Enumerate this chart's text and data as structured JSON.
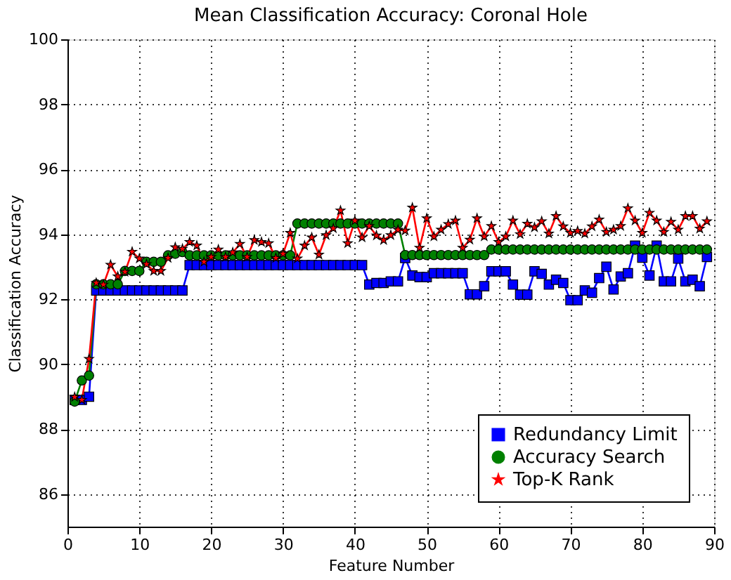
{
  "chart_data": {
    "type": "line",
    "title": "Mean Classification Accuracy: Coronal Hole",
    "xlabel": "Feature Number",
    "ylabel": "Classification Accuracy",
    "x": [
      1,
      2,
      3,
      4,
      5,
      6,
      7,
      8,
      9,
      10,
      11,
      12,
      13,
      14,
      15,
      16,
      17,
      18,
      19,
      20,
      21,
      22,
      23,
      24,
      25,
      26,
      27,
      28,
      29,
      30,
      31,
      32,
      33,
      34,
      35,
      36,
      37,
      38,
      39,
      40,
      41,
      42,
      43,
      44,
      45,
      46,
      47,
      48,
      49,
      50,
      51,
      52,
      53,
      54,
      55,
      56,
      57,
      58,
      59,
      60,
      61,
      62,
      63,
      64,
      65,
      66,
      67,
      68,
      69,
      70,
      71,
      72,
      73,
      74,
      75,
      76,
      77,
      78,
      79,
      80,
      81,
      82,
      83,
      84,
      85,
      86,
      87,
      88,
      89
    ],
    "series": [
      {
        "name": "Redundancy Limit",
        "color": "#0000ff",
        "marker": "square",
        "values": [
          88.9,
          88.9,
          89.0,
          92.27,
          92.27,
          92.27,
          92.27,
          92.27,
          92.27,
          92.27,
          92.27,
          92.27,
          92.27,
          92.27,
          92.27,
          92.27,
          93.05,
          93.05,
          93.05,
          93.05,
          93.05,
          93.05,
          93.05,
          93.05,
          93.05,
          93.05,
          93.05,
          93.05,
          93.05,
          93.05,
          93.05,
          93.05,
          93.05,
          93.05,
          93.05,
          93.05,
          93.05,
          93.05,
          93.05,
          93.05,
          93.05,
          92.45,
          92.5,
          92.5,
          92.55,
          92.55,
          93.27,
          92.73,
          92.68,
          92.68,
          92.8,
          92.8,
          92.8,
          92.8,
          92.8,
          92.15,
          92.15,
          92.4,
          92.86,
          92.86,
          92.86,
          92.45,
          92.14,
          92.14,
          92.86,
          92.78,
          92.45,
          92.6,
          92.5,
          91.97,
          91.97,
          92.27,
          92.2,
          92.65,
          93.0,
          92.3,
          92.7,
          92.8,
          93.65,
          93.28,
          92.73,
          93.65,
          92.55,
          92.55,
          93.25,
          92.55,
          92.6,
          92.4,
          93.3
        ]
      },
      {
        "name": "Accuracy Search",
        "color": "#008000",
        "marker": "circle",
        "values": [
          88.85,
          89.5,
          89.65,
          92.46,
          92.46,
          92.46,
          92.46,
          92.87,
          92.87,
          92.87,
          93.15,
          93.15,
          93.15,
          93.35,
          93.4,
          93.45,
          93.35,
          93.35,
          93.35,
          93.35,
          93.35,
          93.35,
          93.35,
          93.35,
          93.35,
          93.35,
          93.35,
          93.35,
          93.35,
          93.35,
          93.35,
          94.33,
          94.33,
          94.33,
          94.33,
          94.33,
          94.33,
          94.33,
          94.33,
          94.33,
          94.33,
          94.33,
          94.33,
          94.33,
          94.33,
          94.33,
          93.36,
          93.36,
          93.36,
          93.36,
          93.36,
          93.36,
          93.36,
          93.36,
          93.36,
          93.36,
          93.36,
          93.36,
          93.53,
          93.53,
          93.53,
          93.53,
          93.53,
          93.53,
          93.53,
          93.53,
          93.53,
          93.53,
          93.53,
          93.53,
          93.53,
          93.53,
          93.53,
          93.53,
          93.53,
          93.53,
          93.53,
          93.53,
          93.53,
          93.53,
          93.53,
          93.53,
          93.53,
          93.53,
          93.53,
          93.53,
          93.53,
          93.53,
          93.53
        ]
      },
      {
        "name": "Top-K Rank",
        "color": "#ff0000",
        "marker": "star",
        "values": [
          88.99,
          88.9,
          90.16,
          92.5,
          92.45,
          93.06,
          92.7,
          92.84,
          93.46,
          93.25,
          93.08,
          92.87,
          92.87,
          93.27,
          93.6,
          93.55,
          93.76,
          93.65,
          93.15,
          93.3,
          93.53,
          93.3,
          93.44,
          93.7,
          93.3,
          93.82,
          93.76,
          93.72,
          93.27,
          93.4,
          94.04,
          93.25,
          93.65,
          93.9,
          93.37,
          93.97,
          94.18,
          94.73,
          93.72,
          94.42,
          93.9,
          94.25,
          93.96,
          93.82,
          93.97,
          94.14,
          94.11,
          94.82,
          93.58,
          94.49,
          93.93,
          94.14,
          94.31,
          94.42,
          93.58,
          93.83,
          94.49,
          93.93,
          94.25,
          93.76,
          93.93,
          94.42,
          94.0,
          94.32,
          94.21,
          94.4,
          94.02,
          94.56,
          94.24,
          94.04,
          94.1,
          94.02,
          94.24,
          94.45,
          94.07,
          94.14,
          94.25,
          94.8,
          94.42,
          94.04,
          94.66,
          94.42,
          94.07,
          94.38,
          94.14,
          94.56,
          94.56,
          94.17,
          94.4
        ]
      }
    ],
    "xlim": [
      0,
      90
    ],
    "xticks": [
      0,
      10,
      20,
      30,
      40,
      50,
      60,
      70,
      80,
      90
    ],
    "ylim": [
      85,
      100
    ],
    "yticks": [
      86,
      88,
      90,
      92,
      94,
      96,
      98,
      100
    ],
    "grid": true,
    "legend": "bottom right",
    "line_style": "solid"
  }
}
